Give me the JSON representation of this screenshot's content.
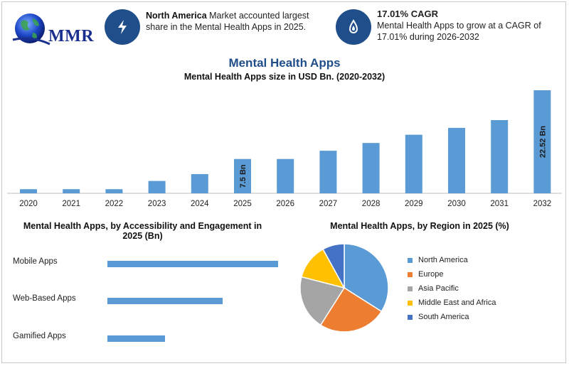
{
  "logo": {
    "text": "MMR",
    "icon": "globe-icon"
  },
  "highlights": [
    {
      "icon": "lightning-icon",
      "bold": "North America",
      "text": " Market accounted largest share in the Mental Health Apps in 2025."
    },
    {
      "icon": "drop-icon",
      "bold": "17.01% CAGR",
      "text": "Mental Health Apps to grow at a CAGR of 17.01% during 2026-2032"
    }
  ],
  "colors": {
    "accent": "#1f4e8a",
    "bar": "#5b9bd5"
  },
  "chart_data": [
    {
      "type": "bar",
      "title": "Mental Health Apps",
      "subtitle": "Mental Health Apps size in USD Bn. (2020-2032)",
      "categories": [
        "2020",
        "2021",
        "2022",
        "2023",
        "2024",
        "2025",
        "2026",
        "2027",
        "2028",
        "2029",
        "2030",
        "2031",
        "2032"
      ],
      "values": [
        0.9,
        0.9,
        0.9,
        2.7,
        4.2,
        7.5,
        7.5,
        9.3,
        11.0,
        12.8,
        14.3,
        16.0,
        22.52
      ],
      "data_labels": {
        "5": "7.5 Bn",
        "12": "22.52 Bn"
      },
      "ylim": [
        0,
        22.52
      ],
      "grid": false,
      "color": "#5b9bd5"
    },
    {
      "type": "bar",
      "orientation": "horizontal",
      "title": "Mental Health Apps, by Accessibility and Engagement in 2025 (Bn)",
      "categories": [
        "Mobile Apps",
        "Web-Based Apps",
        "Gamified Apps"
      ],
      "values": [
        4.0,
        2.7,
        1.35
      ],
      "xlim": [
        0,
        4.0
      ],
      "color": "#5b9bd5"
    },
    {
      "type": "pie",
      "title": "Mental Health Apps, by Region in 2025 (%)",
      "categories": [
        "North America",
        "Europe",
        "Asia Pacific",
        "Middle East and Africa",
        "South America"
      ],
      "values": [
        34,
        25,
        20,
        13,
        8
      ],
      "colors": [
        "#5b9bd5",
        "#ed7d31",
        "#a5a5a5",
        "#ffc000",
        "#4472c4"
      ],
      "legend": "right"
    }
  ]
}
